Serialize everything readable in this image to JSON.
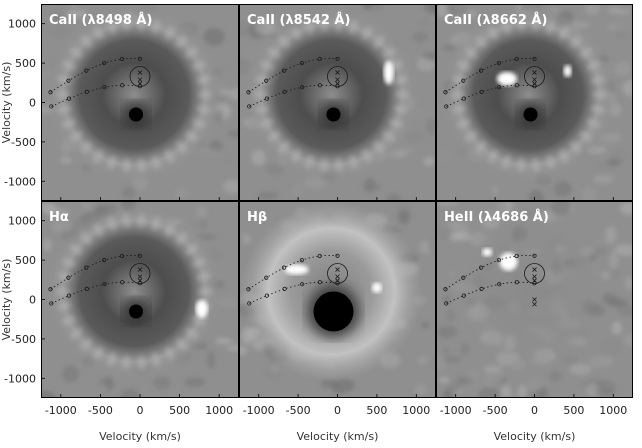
{
  "figure": {
    "xlabel": "Velocity (km/s)",
    "ylabel": "Velocity (km/s)",
    "x_ticks": [
      "-1000",
      "-500",
      "0",
      "500",
      "1000"
    ],
    "y_ticks": [
      "1000",
      "500",
      "0",
      "-500",
      "-1000"
    ],
    "panels": [
      {
        "title": "CaII (λ8498 Å)",
        "variant": "ring"
      },
      {
        "title": "CaII (λ8542 Å)",
        "variant": "ring"
      },
      {
        "title": "CaII (λ8662 Å)",
        "variant": "ring"
      },
      {
        "title": "Hα",
        "variant": "ring"
      },
      {
        "title": "Hβ",
        "variant": "ring-bright"
      },
      {
        "title": "HeII (λ4686 Å)",
        "variant": "noisy"
      }
    ],
    "colors": {
      "background": "#8f8f8f",
      "ring_dark": "#4a4a4a",
      "core": "#000000",
      "bright_spot": "#ffffff",
      "overlay": "#1a1a1a"
    }
  }
}
